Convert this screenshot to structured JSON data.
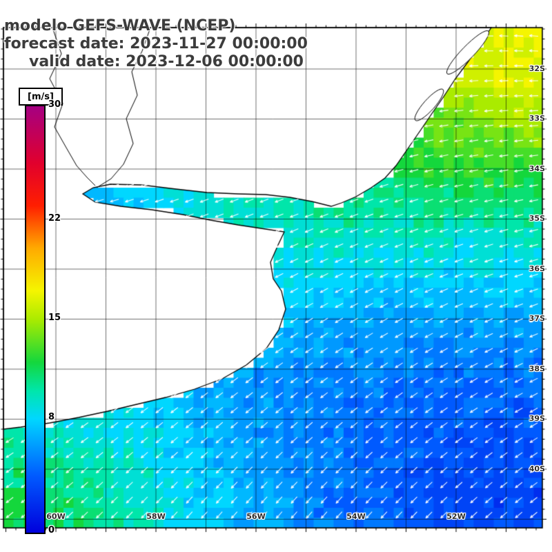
{
  "title": {
    "line1": "modelo GEFS-WAVE (NCEP)",
    "line2": "forecast date: 2023-11-27 00:00:00",
    "line3": "valid date: 2023-12-06 00:00:00"
  },
  "legend": {
    "unit": "[m/s]",
    "ticks": [
      "30",
      "22",
      "15",
      "8",
      "0"
    ]
  },
  "map": {
    "lat_labels": [
      "32S",
      "33S",
      "34S",
      "35S",
      "36S",
      "37S",
      "38S",
      "39S",
      "40S"
    ],
    "lon_labels": [
      "60W",
      "58W",
      "56W",
      "54W",
      "52W"
    ]
  },
  "colors": {
    "background": "#ffffff",
    "land": "#ffffff",
    "coastline": "#000000",
    "grid": "#000000",
    "arrows": "#ffffff",
    "title_text": "#3c3c3c",
    "colormap_stops": [
      {
        "v": 0,
        "c": "#0000dc"
      },
      {
        "v": 4,
        "c": "#005aff"
      },
      {
        "v": 8,
        "c": "#00d7ff"
      },
      {
        "v": 10,
        "c": "#00e6aa"
      },
      {
        "v": 12,
        "c": "#14d73c"
      },
      {
        "v": 15,
        "c": "#aaeb00"
      },
      {
        "v": 17,
        "c": "#f5f500"
      },
      {
        "v": 20,
        "c": "#ffaa00"
      },
      {
        "v": 23,
        "c": "#ff1e00"
      },
      {
        "v": 26,
        "c": "#e1002d"
      },
      {
        "v": 30,
        "c": "#a50082"
      }
    ]
  },
  "chart_data": {
    "type": "heatmap",
    "title": "modelo GEFS-WAVE (NCEP)",
    "forecast_date": "2023-11-27 00:00:00",
    "valid_date": "2023-12-06 00:00:00",
    "variable": "wind / wave speed field over ocean with direction arrows",
    "unit": "m/s",
    "colorbar_range": [
      0,
      30
    ],
    "colorbar_tick_values": [
      0,
      8,
      15,
      22,
      30
    ],
    "lat_ticks": [
      "32S",
      "33S",
      "34S",
      "35S",
      "36S",
      "37S",
      "38S",
      "39S",
      "40S"
    ],
    "lon_ticks": [
      "60W",
      "58W",
      "56W",
      "54W",
      "52W"
    ],
    "overlay": "white direction arrows over ocean, pointing generally W in the north rotating to SW/S in the south",
    "region_values_ms": [
      {
        "region": "northeast offshore (top right)",
        "value": 16
      },
      {
        "region": "east-central offshore",
        "value": 11
      },
      {
        "region": "center, off Rio de la Plata mouth",
        "value": 8
      },
      {
        "region": "Rio de la Plata estuary",
        "value": 8
      },
      {
        "region": "south-central",
        "value": 6
      },
      {
        "region": "southeast corner low",
        "value": 4
      },
      {
        "region": "southwest coastal (bottom left)",
        "value": 12
      }
    ]
  }
}
